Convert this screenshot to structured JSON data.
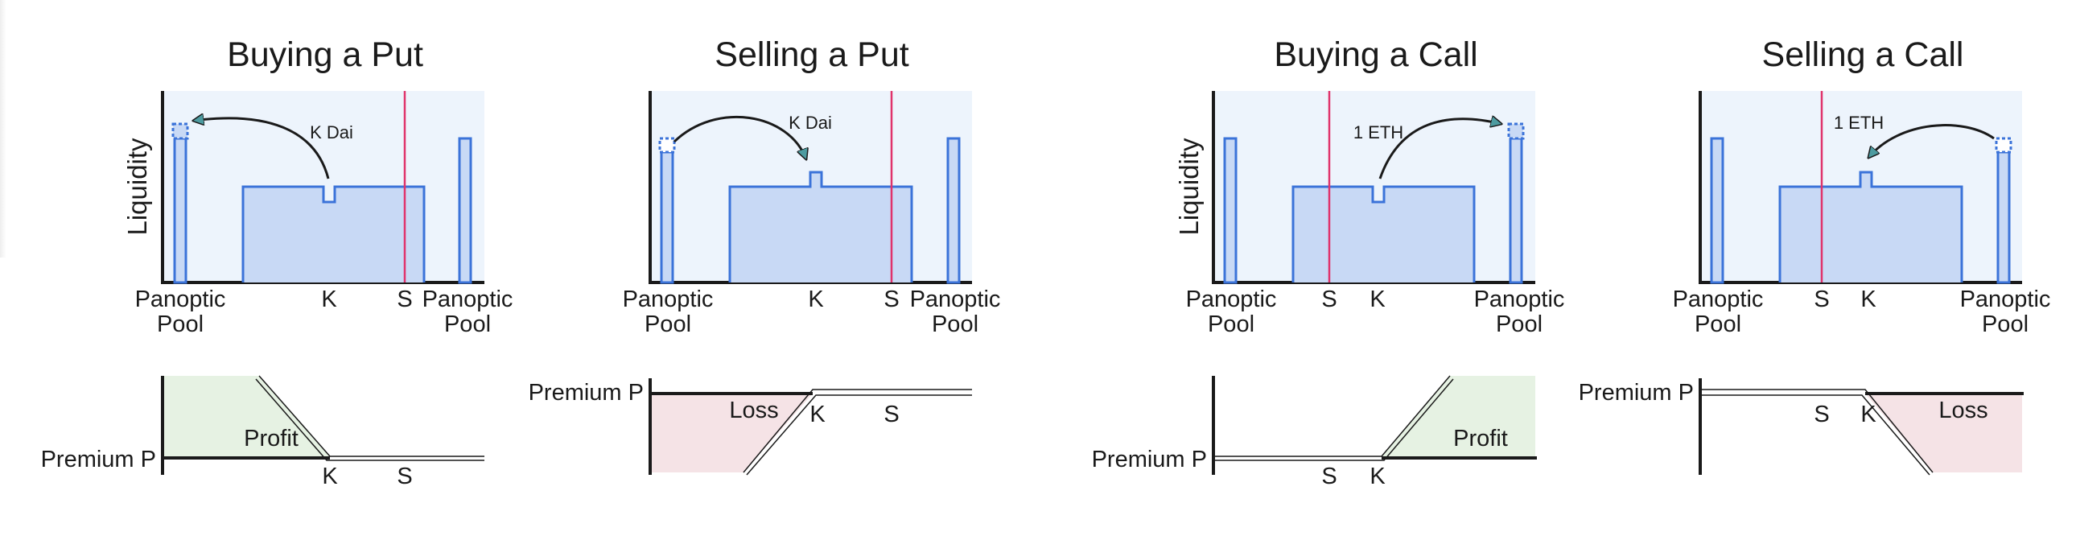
{
  "y_axis_label": "Liquidity",
  "panels": [
    {
      "id": "buying-a-put",
      "title": "Buying a Put",
      "liquidity_labels": [
        "Panoptic",
        "Pool",
        "K",
        "S",
        "Panoptic",
        "Pool"
      ],
      "arrow_label": "K Dai",
      "payoff_labels": [
        "Profit",
        "Premium P",
        "K",
        "S"
      ],
      "colors": {
        "region": "#e6f2e3"
      }
    },
    {
      "id": "selling-a-put",
      "title": "Selling a Put",
      "liquidity_labels": [
        "Panoptic",
        "Pool",
        "K",
        "S",
        "Panoptic",
        "Pool"
      ],
      "arrow_label": "K Dai",
      "payoff_labels": [
        "Loss",
        "Premium P",
        "K",
        "S"
      ],
      "colors": {
        "region": "#f5e3e6"
      }
    },
    {
      "id": "buying-a-call",
      "title": "Buying a Call",
      "liquidity_labels": [
        "Panoptic",
        "Pool",
        "S",
        "K",
        "Panoptic",
        "Pool"
      ],
      "arrow_label": "1 ETH",
      "payoff_labels": [
        "Profit",
        "Premium P",
        "S",
        "K"
      ],
      "colors": {
        "region": "#e6f2e3"
      }
    },
    {
      "id": "selling-a-call",
      "title": "Selling a Call",
      "liquidity_labels": [
        "Panoptic",
        "Pool",
        "S",
        "K",
        "Panoptic",
        "Pool"
      ],
      "arrow_label": "1 ETH",
      "payoff_labels": [
        "Loss",
        "Premium P",
        "S",
        "K"
      ],
      "colors": {
        "region": "#f5e3e6"
      }
    }
  ],
  "colors": {
    "bar_fill": "#c8d9f5",
    "bar_stroke": "#3b73d9",
    "chart_bg": "#edf4fc",
    "price_line": "#e0336b",
    "arrow_head": "#4d9ba0",
    "axis": "#1a1a1a"
  }
}
